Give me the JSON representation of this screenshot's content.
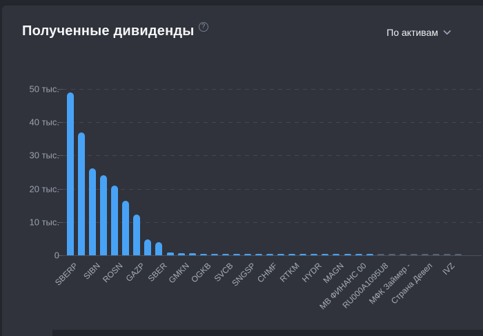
{
  "page": {
    "background": "#24262d",
    "card_background": "#30333c"
  },
  "header": {
    "title": "Полученные дивиденды",
    "help_icon": "?",
    "filter": {
      "label": "По активам",
      "icon": "chevron-down"
    }
  },
  "chart_data": {
    "type": "bar",
    "title": "Полученные дивиденды",
    "ylabel": "",
    "xlabel": "",
    "unit": "тыс.",
    "ylim": [
      0,
      50000
    ],
    "grid": "dashed-horizontal",
    "legend": "none",
    "bar_color": "#48a3f6",
    "muted_bar_color": "#5a6170",
    "muted_from_index": 28,
    "y_ticks": [
      {
        "value": 0,
        "label": "0"
      },
      {
        "value": 10000,
        "label": "10 тыс."
      },
      {
        "value": 20000,
        "label": "20 тыс."
      },
      {
        "value": 30000,
        "label": "30 тыс."
      },
      {
        "value": 40000,
        "label": "40 тыс."
      },
      {
        "value": 50000,
        "label": "50 тыс."
      }
    ],
    "categories": [
      "SBERP",
      "SIBN",
      "ROSN",
      "GAZP",
      "SBER",
      "GMKN",
      "OGKB",
      "SVCB",
      "SNGSP",
      "CHMF",
      "RTKM",
      "HYDR",
      "MAGN",
      "МВ ФИНАНС 00",
      "RU000A1095U8",
      "МФК Займер -",
      "Страна Девел",
      "IVZ"
    ],
    "bars": [
      {
        "label": "SBERP",
        "value": 49000
      },
      {
        "label": "",
        "value": 37000
      },
      {
        "label": "SIBN",
        "value": 26200
      },
      {
        "label": "",
        "value": 24100
      },
      {
        "label": "ROSN",
        "value": 21000
      },
      {
        "label": "",
        "value": 16400
      },
      {
        "label": "GAZP",
        "value": 12200
      },
      {
        "label": "",
        "value": 4800
      },
      {
        "label": "SBER",
        "value": 3900
      },
      {
        "label": "",
        "value": 800
      },
      {
        "label": "GMKN",
        "value": 600
      },
      {
        "label": "",
        "value": 550
      },
      {
        "label": "OGKB",
        "value": 500
      },
      {
        "label": "",
        "value": 480
      },
      {
        "label": "SVCB",
        "value": 460
      },
      {
        "label": "",
        "value": 440
      },
      {
        "label": "SNGSP",
        "value": 420
      },
      {
        "label": "",
        "value": 400
      },
      {
        "label": "CHMF",
        "value": 380
      },
      {
        "label": "",
        "value": 370
      },
      {
        "label": "RTKM",
        "value": 360
      },
      {
        "label": "",
        "value": 350
      },
      {
        "label": "HYDR",
        "value": 340
      },
      {
        "label": "",
        "value": 330
      },
      {
        "label": "MAGN",
        "value": 320
      },
      {
        "label": "",
        "value": 310
      },
      {
        "label": "МВ ФИНАНС 00",
        "value": 300
      },
      {
        "label": "",
        "value": 290
      },
      {
        "label": "RU000A1095U8",
        "value": 280
      },
      {
        "label": "",
        "value": 270
      },
      {
        "label": "МФК Займер -",
        "value": 260
      },
      {
        "label": "",
        "value": 250
      },
      {
        "label": "Страна Девел",
        "value": 240
      },
      {
        "label": "",
        "value": 230
      },
      {
        "label": "IVZ",
        "value": 220
      },
      {
        "label": "",
        "value": 210
      }
    ]
  }
}
